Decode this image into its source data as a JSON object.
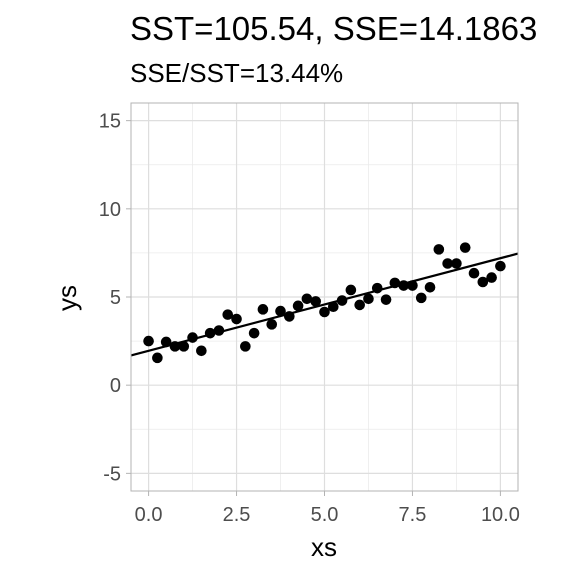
{
  "chart_data": {
    "type": "scatter",
    "title": "SST=105.54, SSE=14.1863",
    "subtitle": "SSE/SST=13.44%",
    "xlabel": "xs",
    "ylabel": "ys",
    "xlim": [
      -0.5,
      10.5
    ],
    "ylim": [
      -6,
      16
    ],
    "xticks": [
      0,
      2.5,
      5,
      7.5,
      10
    ],
    "xtick_labels": [
      "0.0",
      "2.5",
      "5.0",
      "7.5",
      "10.0"
    ],
    "yticks": [
      -5,
      0,
      5,
      10,
      15
    ],
    "ytick_labels": [
      "-5",
      "0",
      "5",
      "10",
      "15"
    ],
    "grid": true,
    "theme": "light",
    "points": {
      "x": [
        0.0,
        0.25,
        0.5,
        0.75,
        1.0,
        1.25,
        1.5,
        1.75,
        2.0,
        2.25,
        2.5,
        2.75,
        3.0,
        3.25,
        3.5,
        3.75,
        4.0,
        4.25,
        4.5,
        4.75,
        5.0,
        5.25,
        5.5,
        5.75,
        6.0,
        6.25,
        6.5,
        6.75,
        7.0,
        7.25,
        7.5,
        7.75,
        8.0,
        8.25,
        8.5,
        8.75,
        9.0,
        9.25,
        9.5,
        9.75,
        10.0
      ],
      "y": [
        2.5,
        1.55,
        2.45,
        2.2,
        2.2,
        2.7,
        1.95,
        2.95,
        3.1,
        4.0,
        3.75,
        2.2,
        2.95,
        4.3,
        3.45,
        4.2,
        3.9,
        4.5,
        4.9,
        4.75,
        4.15,
        4.45,
        4.8,
        5.4,
        4.55,
        4.9,
        5.5,
        4.85,
        5.8,
        5.65,
        5.65,
        4.95,
        5.55,
        7.7,
        6.9,
        6.9,
        7.8,
        6.35,
        5.85,
        6.1,
        6.75
      ]
    },
    "fit_line": {
      "intercept": 1.95,
      "slope": 0.525
    },
    "point_color": "#000000",
    "line_color": "#000000"
  }
}
